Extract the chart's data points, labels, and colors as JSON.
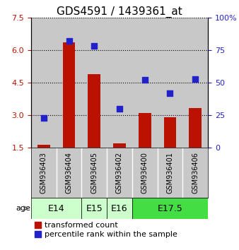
{
  "title": "GDS4591 / 1439361_at",
  "samples": [
    "GSM936403",
    "GSM936404",
    "GSM936405",
    "GSM936402",
    "GSM936400",
    "GSM936401",
    "GSM936406"
  ],
  "transformed_count": [
    1.65,
    6.35,
    4.88,
    1.72,
    3.12,
    2.9,
    3.32
  ],
  "percentile_rank": [
    23,
    82,
    78,
    30,
    52,
    42,
    53
  ],
  "ylim_left": [
    1.5,
    7.5
  ],
  "ylim_right": [
    0,
    100
  ],
  "yticks_left": [
    1.5,
    3.0,
    4.5,
    6.0,
    7.5
  ],
  "yticks_right": [
    0,
    25,
    50,
    75,
    100
  ],
  "bar_color": "#bb1100",
  "dot_color": "#2222cc",
  "bar_bottom": 1.5,
  "age_groups": [
    {
      "label": "E14",
      "indices": [
        0,
        1
      ],
      "color": "#ccffcc"
    },
    {
      "label": "E15",
      "indices": [
        2
      ],
      "color": "#ccffcc"
    },
    {
      "label": "E16",
      "indices": [
        3
      ],
      "color": "#ccffcc"
    },
    {
      "label": "E17.5",
      "indices": [
        4,
        5,
        6
      ],
      "color": "#44dd44"
    }
  ],
  "bg_sample_color": "#c8c8c8",
  "title_fontsize": 11,
  "tick_fontsize": 8,
  "sample_fontsize": 7,
  "age_fontsize": 9,
  "legend_fontsize": 8
}
